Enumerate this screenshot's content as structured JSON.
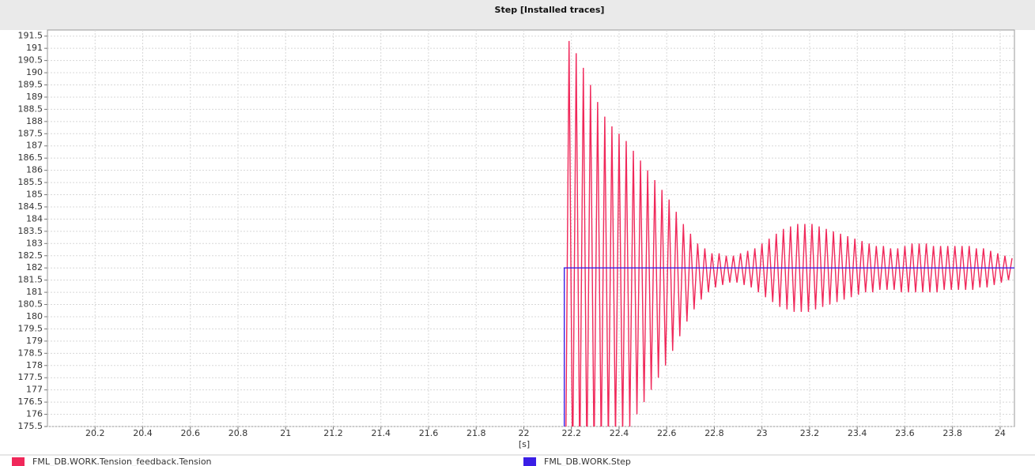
{
  "chart_data": {
    "type": "line",
    "title": "Step [Installed traces]",
    "x_label": "[s]",
    "xlim": [
      20.0,
      24.06
    ],
    "xticks": [
      20.2,
      20.4,
      20.6,
      20.8,
      21,
      21.2,
      21.4,
      21.6,
      21.8,
      22,
      22.2,
      22.4,
      22.6,
      22.8,
      23,
      23.2,
      23.4,
      23.6,
      23.8,
      24
    ],
    "ylim": [
      175.5,
      191.75
    ],
    "yticks": [
      175.5,
      176,
      176.5,
      177,
      177.5,
      178,
      178.5,
      179,
      179.5,
      180,
      180.5,
      181,
      181.5,
      182,
      182.5,
      183,
      183.5,
      184,
      184.5,
      185,
      185.5,
      186,
      186.5,
      187,
      187.5,
      188,
      188.5,
      189,
      189.5,
      190,
      190.5,
      191,
      191.5
    ],
    "grid": true,
    "series": [
      {
        "name": "FML_DB.WORK.Tension_feedback.Tension",
        "color": "#f0285a",
        "x": [
          22.175,
          22.19,
          22.205,
          22.22,
          22.235,
          22.25,
          22.265,
          22.28,
          22.295,
          22.31,
          22.325,
          22.34,
          22.355,
          22.37,
          22.385,
          22.4,
          22.415,
          22.43,
          22.445,
          22.46,
          22.475,
          22.49,
          22.505,
          22.52,
          22.535,
          22.55,
          22.565,
          22.58,
          22.595,
          22.61,
          22.625,
          22.64,
          22.655,
          22.67,
          22.685,
          22.7,
          22.715,
          22.73,
          22.745,
          22.76,
          22.775,
          22.79,
          22.805,
          22.82,
          22.835,
          22.85,
          22.865,
          22.88,
          22.895,
          22.91,
          22.925,
          22.94,
          22.955,
          22.97,
          22.985,
          23.0,
          23.015,
          23.03,
          23.045,
          23.06,
          23.075,
          23.09,
          23.105,
          23.12,
          23.135,
          23.15,
          23.165,
          23.18,
          23.195,
          23.21,
          23.225,
          23.24,
          23.255,
          23.27,
          23.285,
          23.3,
          23.315,
          23.33,
          23.345,
          23.36,
          23.375,
          23.39,
          23.405,
          23.42,
          23.435,
          23.45,
          23.465,
          23.48,
          23.495,
          23.51,
          23.525,
          23.54,
          23.555,
          23.57,
          23.585,
          23.6,
          23.615,
          23.63,
          23.645,
          23.66,
          23.675,
          23.69,
          23.705,
          23.72,
          23.735,
          23.75,
          23.765,
          23.78,
          23.795,
          23.81,
          23.825,
          23.84,
          23.855,
          23.87,
          23.885,
          23.9,
          23.915,
          23.93,
          23.945,
          23.96,
          23.975,
          23.99,
          24.005,
          24.02,
          24.035,
          24.05
        ],
        "values": [
          173,
          191.3,
          173.5,
          190.8,
          173.8,
          190.2,
          174,
          189.5,
          174.3,
          188.8,
          174.6,
          188.2,
          174.8,
          187.8,
          175.0,
          187.5,
          175.2,
          187.2,
          175.5,
          186.8,
          176.0,
          186.4,
          176.5,
          186.0,
          177.0,
          185.6,
          177.5,
          185.2,
          178.0,
          184.8,
          178.6,
          184.3,
          179.2,
          183.8,
          179.8,
          183.4,
          180.3,
          183.0,
          180.7,
          182.8,
          181.0,
          182.6,
          181.2,
          182.6,
          181.3,
          182.5,
          181.4,
          182.5,
          181.4,
          182.6,
          181.3,
          182.7,
          181.2,
          182.8,
          181.0,
          183.0,
          180.8,
          183.2,
          180.6,
          183.4,
          180.4,
          183.6,
          180.3,
          183.7,
          180.2,
          183.8,
          180.2,
          183.8,
          180.2,
          183.8,
          180.3,
          183.7,
          180.4,
          183.6,
          180.5,
          183.5,
          180.6,
          183.4,
          180.7,
          183.3,
          180.8,
          183.2,
          180.9,
          183.1,
          181.0,
          183.0,
          181.0,
          182.9,
          181.1,
          182.9,
          181.1,
          182.8,
          181.1,
          182.8,
          181.0,
          182.9,
          181.0,
          183.0,
          181.0,
          183.0,
          181.0,
          183.0,
          181.0,
          182.9,
          181.0,
          182.9,
          181.1,
          182.9,
          181.1,
          182.9,
          181.1,
          182.9,
          181.1,
          182.9,
          181.1,
          182.8,
          181.2,
          182.8,
          181.2,
          182.7,
          181.3,
          182.6,
          181.4,
          182.5,
          181.5,
          182.4
        ]
      },
      {
        "name": "FML_DB.WORK.Step",
        "color": "#3a1ee6",
        "x": [
          22.17,
          22.17,
          24.06
        ],
        "values": [
          175.5,
          182,
          182
        ]
      }
    ]
  }
}
